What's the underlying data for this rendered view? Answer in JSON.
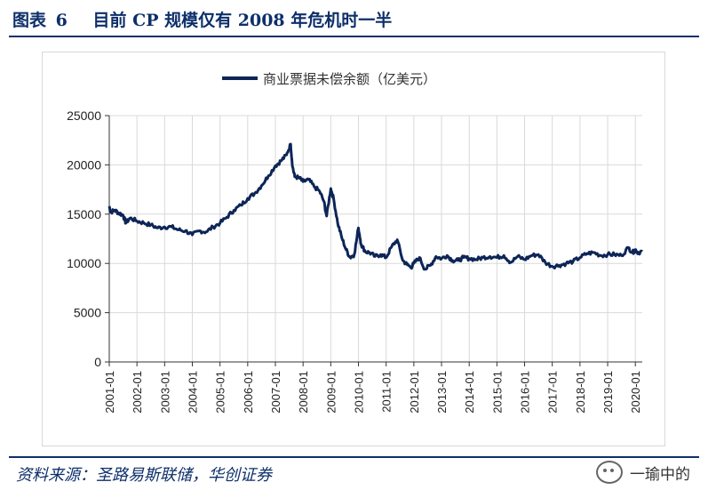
{
  "figure": {
    "label": "图表",
    "number": "6",
    "title": "目前 CP 规模仅有 2008 年危机时一半"
  },
  "source": "资料来源：圣路易斯联储，华创证券",
  "watermark": "一瑜中的",
  "chart_data": {
    "type": "line",
    "title": "",
    "xlabel": "",
    "ylabel": "",
    "ylim": [
      0,
      25000
    ],
    "y_ticks": [
      0,
      5000,
      10000,
      15000,
      20000,
      25000
    ],
    "x_ticks": [
      "2001-01",
      "2002-01",
      "2003-01",
      "2004-01",
      "2005-01",
      "2006-01",
      "2007-01",
      "2008-01",
      "2009-01",
      "2010-01",
      "2011-01",
      "2012-01",
      "2013-01",
      "2014-01",
      "2015-01",
      "2016-01",
      "2017-01",
      "2018-01",
      "2019-01",
      "2020-01"
    ],
    "grid": true,
    "legend_position": "top-center",
    "series": [
      {
        "name": "商业票据未偿余额（亿美元）",
        "color": "#0d2557",
        "x": [
          2001.0,
          2001.05,
          2001.2,
          2001.35,
          2001.5,
          2001.6,
          2001.75,
          2002.0,
          2002.25,
          2002.5,
          2002.75,
          2003.0,
          2003.25,
          2003.5,
          2003.75,
          2004.0,
          2004.25,
          2004.5,
          2004.75,
          2005.0,
          2005.25,
          2005.5,
          2005.75,
          2006.0,
          2006.25,
          2006.5,
          2006.75,
          2007.0,
          2007.2,
          2007.4,
          2007.55,
          2007.62,
          2007.7,
          2007.85,
          2008.0,
          2008.2,
          2008.4,
          2008.6,
          2008.75,
          2008.85,
          2009.0,
          2009.1,
          2009.25,
          2009.4,
          2009.55,
          2009.7,
          2009.85,
          2010.0,
          2010.1,
          2010.25,
          2010.4,
          2010.6,
          2010.8,
          2011.0,
          2011.2,
          2011.4,
          2011.6,
          2011.75,
          2011.9,
          2012.0,
          2012.2,
          2012.4,
          2012.6,
          2012.8,
          2013.0,
          2013.2,
          2013.4,
          2013.6,
          2013.8,
          2014.0,
          2014.25,
          2014.5,
          2014.75,
          2015.0,
          2015.25,
          2015.5,
          2015.75,
          2016.0,
          2016.25,
          2016.5,
          2016.75,
          2017.0,
          2017.25,
          2017.5,
          2017.75,
          2018.0,
          2018.25,
          2018.5,
          2018.75,
          2019.0,
          2019.25,
          2019.5,
          2019.75,
          2019.9,
          2020.0,
          2020.1,
          2020.25
        ],
        "values": [
          15800,
          15200,
          15400,
          15100,
          14900,
          14100,
          14600,
          14300,
          14100,
          13900,
          13600,
          13700,
          13700,
          13400,
          13300,
          12900,
          13300,
          13200,
          13700,
          14100,
          14700,
          15400,
          15900,
          16600,
          17100,
          17900,
          18900,
          19900,
          20400,
          21000,
          22100,
          19800,
          18800,
          18700,
          18300,
          18500,
          17800,
          17300,
          16300,
          14800,
          17600,
          16600,
          14100,
          12600,
          11400,
          10600,
          10900,
          13600,
          11900,
          11200,
          11100,
          10700,
          10900,
          10600,
          11700,
          12400,
          10300,
          9900,
          9600,
          10000,
          10600,
          9400,
          9800,
          10700,
          10500,
          10800,
          10300,
          10300,
          10600,
          10500,
          10400,
          10600,
          10700,
          10600,
          10800,
          10100,
          10700,
          10400,
          10800,
          10900,
          10100,
          9700,
          9800,
          10000,
          10200,
          10600,
          11000,
          11100,
          10800,
          10900,
          10900,
          10800,
          11600,
          11100,
          11400,
          11100,
          11200
        ]
      }
    ]
  }
}
